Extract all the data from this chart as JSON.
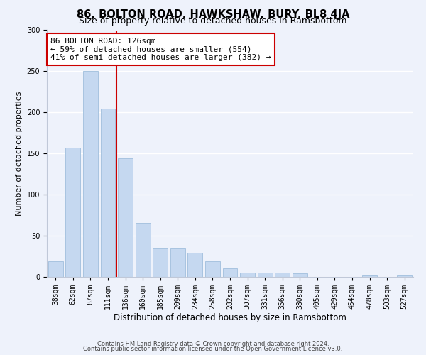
{
  "title": "86, BOLTON ROAD, HAWKSHAW, BURY, BL8 4JA",
  "subtitle": "Size of property relative to detached houses in Ramsbottom",
  "xlabel": "Distribution of detached houses by size in Ramsbottom",
  "ylabel": "Number of detached properties",
  "categories": [
    "38sqm",
    "62sqm",
    "87sqm",
    "111sqm",
    "136sqm",
    "160sqm",
    "185sqm",
    "209sqm",
    "234sqm",
    "258sqm",
    "282sqm",
    "307sqm",
    "331sqm",
    "356sqm",
    "380sqm",
    "405sqm",
    "429sqm",
    "454sqm",
    "478sqm",
    "503sqm",
    "527sqm"
  ],
  "values": [
    19,
    157,
    250,
    205,
    144,
    66,
    35,
    35,
    29,
    19,
    10,
    5,
    5,
    5,
    4,
    0,
    0,
    0,
    2,
    0,
    2
  ],
  "bar_color": "#c5d8f0",
  "bar_edge_color": "#a8c4e0",
  "vline_color": "#cc0000",
  "annotation_box_text": "86 BOLTON ROAD: 126sqm\n← 59% of detached houses are smaller (554)\n41% of semi-detached houses are larger (382) →",
  "annotation_edge_color": "#cc0000",
  "background_color": "#eef2fb",
  "grid_color": "#ffffff",
  "ylim": [
    0,
    300
  ],
  "yticks": [
    0,
    50,
    100,
    150,
    200,
    250,
    300
  ],
  "footnote1": "Contains HM Land Registry data © Crown copyright and database right 2024.",
  "footnote2": "Contains public sector information licensed under the Open Government Licence v3.0.",
  "title_fontsize": 10.5,
  "subtitle_fontsize": 9,
  "xlabel_fontsize": 8.5,
  "ylabel_fontsize": 8,
  "tick_fontsize": 7,
  "annotation_fontsize": 8,
  "footnote_fontsize": 6
}
